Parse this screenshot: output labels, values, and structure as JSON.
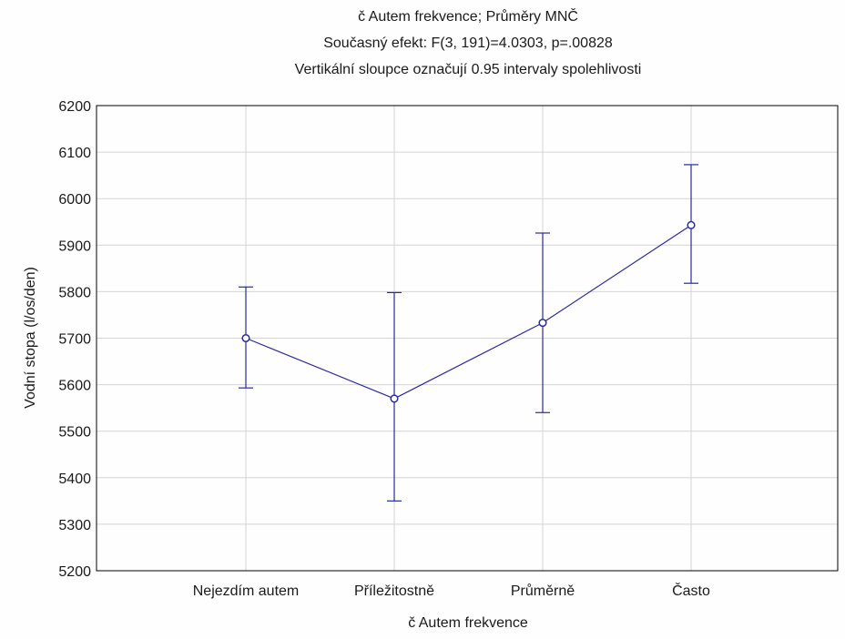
{
  "chart_data": {
    "type": "line",
    "title_lines": [
      "č Autem frekvence; Průměry MNČ",
      "Současný efekt: F(3, 191)=4.0303, p=.00828",
      "Vertikální sloupce označují 0.95 intervaly spolehlivosti"
    ],
    "xlabel": "č Autem frekvence",
    "ylabel": "Vodní stopa (l/os/den)",
    "categories": [
      "Nejezdím autem",
      "Příležitostně",
      "Průměrně",
      "Často"
    ],
    "series": [
      {
        "values": [
          5700,
          5570,
          5733,
          5943
        ],
        "ci_lower": [
          5593,
          5350,
          5540,
          5818
        ],
        "ci_upper": [
          5810,
          5798,
          5926,
          6073
        ]
      }
    ],
    "ylim": [
      5200,
      6200
    ],
    "yticks": [
      5200,
      5300,
      5400,
      5500,
      5600,
      5700,
      5800,
      5900,
      6000,
      6100,
      6200
    ],
    "grid": true,
    "colors": {
      "series": "#2a2a9c",
      "grid": "#d4d4d4",
      "axes": "#000000"
    }
  }
}
